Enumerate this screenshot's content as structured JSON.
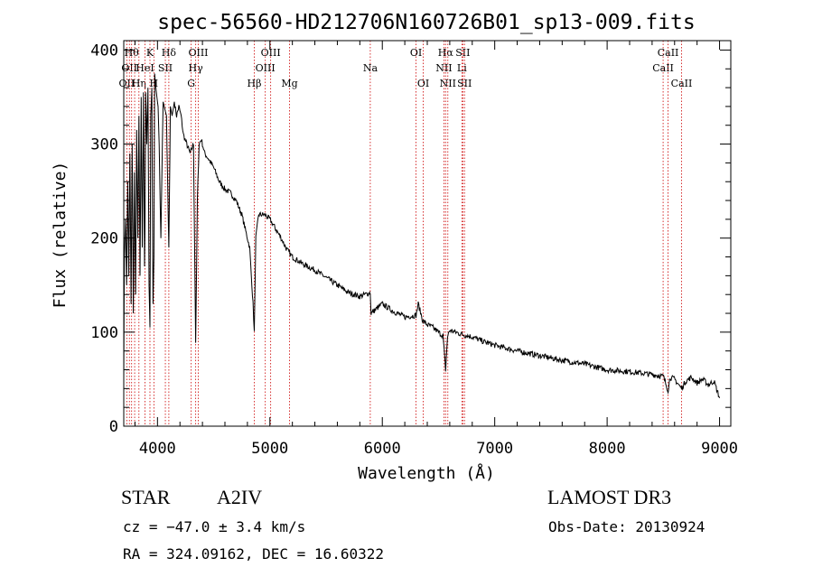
{
  "chart_data": {
    "type": "line",
    "title": "spec-56560-HD212706N160726B01_sp13-009.fits",
    "xlabel": "Wavelength (Å)",
    "ylabel": "Flux (relative)",
    "xlim": [
      3700,
      9100
    ],
    "ylim": [
      0,
      410
    ],
    "xticks": [
      4000,
      5000,
      6000,
      7000,
      8000,
      9000
    ],
    "yticks": [
      0,
      100,
      200,
      300,
      400
    ],
    "series": [
      {
        "name": "spectrum",
        "x": [
          3700,
          3705,
          3715,
          3725,
          3735,
          3745,
          3755,
          3765,
          3775,
          3785,
          3795,
          3805,
          3815,
          3825,
          3835,
          3845,
          3855,
          3865,
          3875,
          3885,
          3889,
          3895,
          3905,
          3915,
          3925,
          3933,
          3940,
          3950,
          3960,
          3968,
          3975,
          3985,
          3995,
          4005,
          4015,
          4030,
          4050,
          4080,
          4101,
          4115,
          4130,
          4150,
          4170,
          4190,
          4210,
          4230,
          4260,
          4290,
          4320,
          4340,
          4355,
          4370,
          4390,
          4420,
          4450,
          4500,
          4550,
          4600,
          4650,
          4700,
          4750,
          4780,
          4820,
          4850,
          4861,
          4875,
          4900,
          4950,
          5000,
          5050,
          5100,
          5150,
          5200,
          5300,
          5400,
          5500,
          5600,
          5700,
          5800,
          5893,
          5900,
          6000,
          6100,
          6200,
          6300,
          6320,
          6360,
          6400,
          6450,
          6500,
          6540,
          6563,
          6580,
          6600,
          6650,
          6700,
          6800,
          6900,
          7000,
          7200,
          7400,
          7600,
          7800,
          8000,
          8200,
          8400,
          8500,
          8542,
          8560,
          8600,
          8662,
          8700,
          8750,
          8800,
          8850,
          8900,
          8950,
          9000
        ],
        "y": [
          50,
          175,
          220,
          150,
          260,
          160,
          290,
          130,
          300,
          120,
          270,
          140,
          315,
          200,
          330,
          160,
          350,
          190,
          355,
          170,
          210,
          355,
          300,
          360,
          150,
          105,
          330,
          360,
          130,
          180,
          375,
          360,
          350,
          340,
          300,
          200,
          345,
          330,
          190,
          340,
          330,
          345,
          330,
          340,
          330,
          310,
          300,
          290,
          300,
          90,
          240,
          300,
          305,
          290,
          285,
          275,
          260,
          252,
          248,
          240,
          225,
          210,
          190,
          130,
          100,
          200,
          225,
          225,
          220,
          210,
          200,
          188,
          180,
          172,
          166,
          158,
          150,
          142,
          138,
          142,
          120,
          130,
          122,
          116,
          118,
          130,
          112,
          108,
          105,
          100,
          96,
          60,
          95,
          102,
          100,
          98,
          95,
          90,
          86,
          80,
          75,
          70,
          66,
          60,
          58,
          55,
          53,
          38,
          52,
          50,
          40,
          48,
          52,
          46,
          50,
          44,
          48,
          30
        ]
      }
    ],
    "lines": [
      {
        "wave": 3727,
        "label": "OII",
        "row": 3
      },
      {
        "wave": 3750,
        "label": "OII",
        "row": 2
      },
      {
        "wave": 3770,
        "label": "Hθ",
        "row": 1
      },
      {
        "wave": 3797,
        "label": "",
        "row": 1
      },
      {
        "wave": 3835,
        "label": "Hη",
        "row": 3
      },
      {
        "wave": 3889,
        "label": "HeI",
        "row": 2
      },
      {
        "wave": 3933,
        "label": "K",
        "row": 1
      },
      {
        "wave": 3968,
        "label": "H",
        "row": 3
      },
      {
        "wave": 4070,
        "label": "SII",
        "row": 2
      },
      {
        "wave": 4101,
        "label": "Hδ",
        "row": 1
      },
      {
        "wave": 4300,
        "label": "G",
        "row": 3
      },
      {
        "wave": 4340,
        "label": "Hγ",
        "row": 2
      },
      {
        "wave": 4363,
        "label": "OIII",
        "row": 1
      },
      {
        "wave": 4861,
        "label": "Hβ",
        "row": 3
      },
      {
        "wave": 4959,
        "label": "OIII",
        "row": 2
      },
      {
        "wave": 5007,
        "label": "OIII",
        "row": 1
      },
      {
        "wave": 5175,
        "label": "Mg",
        "row": 3
      },
      {
        "wave": 5893,
        "label": "Na",
        "row": 2
      },
      {
        "wave": 6300,
        "label": "OI",
        "row": 1
      },
      {
        "wave": 6364,
        "label": "OI",
        "row": 3
      },
      {
        "wave": 6548,
        "label": "NII",
        "row": 2
      },
      {
        "wave": 6563,
        "label": "Hα",
        "row": 1
      },
      {
        "wave": 6583,
        "label": "NII",
        "row": 3
      },
      {
        "wave": 6708,
        "label": "Li",
        "row": 2
      },
      {
        "wave": 6716,
        "label": "SII",
        "row": 1
      },
      {
        "wave": 6731,
        "label": "SII",
        "row": 3
      },
      {
        "wave": 8498,
        "label": "CaII",
        "row": 2
      },
      {
        "wave": 8542,
        "label": "CaII",
        "row": 1
      },
      {
        "wave": 8662,
        "label": "CaII",
        "row": 3
      }
    ],
    "colors": {
      "spectrum": "#000000",
      "lines": "#cc0000"
    }
  },
  "info": {
    "object_type": "STAR",
    "spectral_class": "A2IV",
    "survey": "LAMOST DR3",
    "cz": "cz = −47.0 ± 3.4 km/s",
    "obs_date": "Obs-Date: 20130924",
    "coords": "RA = 324.09162, DEC =  16.60322"
  }
}
